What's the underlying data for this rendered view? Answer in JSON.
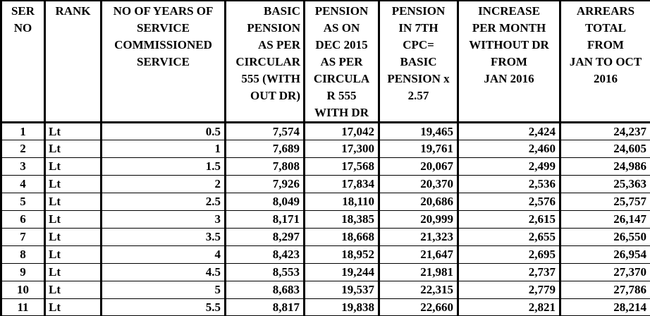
{
  "colors": {
    "background": "#ffffff",
    "text": "#000000",
    "border": "#000000"
  },
  "table": {
    "columns": [
      {
        "key": "ser_no",
        "label": "SER\nNO",
        "header_align": "center",
        "cell_align": "center",
        "width": 62
      },
      {
        "key": "rank",
        "label": "RANK",
        "header_align": "center",
        "cell_align": "left",
        "width": 80
      },
      {
        "key": "years_of_service",
        "label": "NO OF YEARS OF\nSERVICE\nCOMMISSIONED\nSERVICE",
        "header_align": "center",
        "cell_align": "right",
        "width": 176
      },
      {
        "key": "basic_pension",
        "label": "BASIC\nPENSION\nAS PER\nCIRCULAR\n555 (WITH\nOUT DR)",
        "header_align": "right",
        "cell_align": "right",
        "width": 112
      },
      {
        "key": "pension_dec_2015",
        "label": "PENSION\nAS ON\nDEC 2015\nAS PER\nCIRCULA\nR 555\nWITH DR",
        "header_align": "center",
        "cell_align": "right",
        "width": 106
      },
      {
        "key": "pension_7th_cpc",
        "label": "PENSION\nIN 7TH\nCPC=\nBASIC\nPENSION x\n2.57",
        "header_align": "center",
        "cell_align": "right",
        "width": 112
      },
      {
        "key": "increase",
        "label": "INCREASE\nPER MONTH\nWITHOUT DR\nFROM\nJAN 2016",
        "header_align": "center",
        "cell_align": "right",
        "width": 145
      },
      {
        "key": "arrears",
        "label": "ARREARS\nTOTAL\nFROM\nJAN TO OCT\n2016",
        "header_align": "center",
        "cell_align": "right",
        "width": 129
      }
    ],
    "rows": [
      {
        "ser_no": "1",
        "rank": "Lt",
        "years_of_service": "0.5",
        "basic_pension": "7,574",
        "pension_dec_2015": "17,042",
        "pension_7th_cpc": "19,465",
        "increase": "2,424",
        "arrears": "24,237"
      },
      {
        "ser_no": "2",
        "rank": "Lt",
        "years_of_service": "1",
        "basic_pension": "7,689",
        "pension_dec_2015": "17,300",
        "pension_7th_cpc": "19,761",
        "increase": "2,460",
        "arrears": "24,605"
      },
      {
        "ser_no": "3",
        "rank": "Lt",
        "years_of_service": "1.5",
        "basic_pension": "7,808",
        "pension_dec_2015": "17,568",
        "pension_7th_cpc": "20,067",
        "increase": "2,499",
        "arrears": "24,986"
      },
      {
        "ser_no": "4",
        "rank": "Lt",
        "years_of_service": "2",
        "basic_pension": "7,926",
        "pension_dec_2015": "17,834",
        "pension_7th_cpc": "20,370",
        "increase": "2,536",
        "arrears": "25,363"
      },
      {
        "ser_no": "5",
        "rank": "Lt",
        "years_of_service": "2.5",
        "basic_pension": "8,049",
        "pension_dec_2015": "18,110",
        "pension_7th_cpc": "20,686",
        "increase": "2,576",
        "arrears": "25,757"
      },
      {
        "ser_no": "6",
        "rank": "Lt",
        "years_of_service": "3",
        "basic_pension": "8,171",
        "pension_dec_2015": "18,385",
        "pension_7th_cpc": "20,999",
        "increase": "2,615",
        "arrears": "26,147"
      },
      {
        "ser_no": "7",
        "rank": "Lt",
        "years_of_service": "3.5",
        "basic_pension": "8,297",
        "pension_dec_2015": "18,668",
        "pension_7th_cpc": "21,323",
        "increase": "2,655",
        "arrears": "26,550"
      },
      {
        "ser_no": "8",
        "rank": "Lt",
        "years_of_service": "4",
        "basic_pension": "8,423",
        "pension_dec_2015": "18,952",
        "pension_7th_cpc": "21,647",
        "increase": "2,695",
        "arrears": "26,954"
      },
      {
        "ser_no": "9",
        "rank": "Lt",
        "years_of_service": "4.5",
        "basic_pension": "8,553",
        "pension_dec_2015": "19,244",
        "pension_7th_cpc": "21,981",
        "increase": "2,737",
        "arrears": "27,370"
      },
      {
        "ser_no": "10",
        "rank": "Lt",
        "years_of_service": "5",
        "basic_pension": "8,683",
        "pension_dec_2015": "19,537",
        "pension_7th_cpc": "22,315",
        "increase": "2,779",
        "arrears": "27,786"
      },
      {
        "ser_no": "11",
        "rank": "Lt",
        "years_of_service": "5.5",
        "basic_pension": "8,817",
        "pension_dec_2015": "19,838",
        "pension_7th_cpc": "22,660",
        "increase": "2,821",
        "arrears": "28,214"
      }
    ]
  }
}
